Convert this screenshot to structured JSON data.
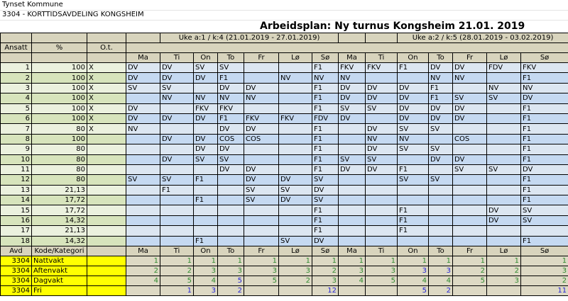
{
  "header": {
    "organization": "Tynset Kommune",
    "department": "3304 - KORTTIDSAVDELING KONGSHEIM",
    "title": "Arbeidsplan: Ny turnus Kongsheim 21.01. 2019"
  },
  "weeks": [
    "Uke a:1 / k:4 (21.01.2019 - 27.01.2019)",
    "Uke a:2 / k:5 (28.01.2019 - 03.02.2019)"
  ],
  "columns": {
    "ansatt": "Ansatt",
    "percent": "%",
    "ot": "O.t."
  },
  "days": [
    "Ma",
    "Ti",
    "On",
    "To",
    "Fr",
    "Lø",
    "Sø",
    "Ma",
    "Ti",
    "On",
    "To",
    "Fr",
    "Lø",
    "Sø"
  ],
  "employees": [
    {
      "id": "1",
      "pct": "100",
      "ot": "X",
      "shifts": [
        "DV",
        "DV",
        "SV",
        "SV",
        "",
        "",
        "F1",
        "FKV",
        "FKV",
        "F1",
        "DV",
        "DV",
        "FDV",
        "FKV"
      ]
    },
    {
      "id": "2",
      "pct": "100",
      "ot": "X",
      "shifts": [
        "DV",
        "DV",
        "DV",
        "F1",
        "",
        "NV",
        "NV",
        "NV",
        "",
        "",
        "NV",
        "NV",
        "",
        "F1"
      ]
    },
    {
      "id": "3",
      "pct": "100",
      "ot": "X",
      "shifts": [
        "SV",
        "SV",
        "",
        "DV",
        "DV",
        "",
        "F1",
        "DV",
        "DV",
        "DV",
        "F1",
        "",
        "NV",
        "NV"
      ]
    },
    {
      "id": "4",
      "pct": "100",
      "ot": "X",
      "shifts": [
        "",
        "NV",
        "NV",
        "NV",
        "NV",
        "",
        "F1",
        "DV",
        "DV",
        "DV",
        "F1",
        "SV",
        "SV",
        "DV"
      ]
    },
    {
      "id": "5",
      "pct": "100",
      "ot": "X",
      "shifts": [
        "DV",
        "",
        "FKV",
        "FKV",
        "",
        "",
        "F1",
        "SV",
        "SV",
        "DV",
        "DV",
        "DV",
        "",
        "F1"
      ]
    },
    {
      "id": "6",
      "pct": "100",
      "ot": "X",
      "shifts": [
        "DV",
        "DV",
        "DV",
        "F1",
        "FKV",
        "FKV",
        "FDV",
        "DV",
        "",
        "DV",
        "DV",
        "DV",
        "",
        "F1"
      ]
    },
    {
      "id": "7",
      "pct": "80",
      "ot": "X",
      "shifts": [
        "NV",
        "",
        "",
        "DV",
        "DV",
        "",
        "F1",
        "",
        "DV",
        "SV",
        "SV",
        "",
        "",
        "F1"
      ]
    },
    {
      "id": "8",
      "pct": "100",
      "ot": "",
      "shifts": [
        "",
        "DV",
        "DV",
        "COS",
        "COS",
        "",
        "F1",
        "",
        "NV",
        "NV",
        "",
        "COS",
        "",
        "F1"
      ]
    },
    {
      "id": "9",
      "pct": "80",
      "ot": "",
      "shifts": [
        "",
        "",
        "DV",
        "DV",
        "",
        "",
        "F1",
        "",
        "DV",
        "SV",
        "SV",
        "",
        "",
        "F1"
      ]
    },
    {
      "id": "10",
      "pct": "80",
      "ot": "",
      "shifts": [
        "",
        "DV",
        "SV",
        "SV",
        "",
        "",
        "F1",
        "SV",
        "SV",
        "",
        "DV",
        "DV",
        "",
        "F1"
      ]
    },
    {
      "id": "11",
      "pct": "80",
      "ot": "",
      "shifts": [
        "",
        "",
        "",
        "DV",
        "DV",
        "",
        "F1",
        "DV",
        "DV",
        "F1",
        "",
        "SV",
        "SV",
        "DV"
      ]
    },
    {
      "id": "12",
      "pct": "80",
      "ot": "",
      "shifts": [
        "SV",
        "SV",
        "F1",
        "",
        "DV",
        "DV",
        "SV",
        "",
        "",
        "SV",
        "SV",
        "",
        "",
        "F1"
      ]
    },
    {
      "id": "13",
      "pct": "21,13",
      "ot": "",
      "shifts": [
        "",
        "F1",
        "",
        "",
        "SV",
        "SV",
        "DV",
        "",
        "",
        "",
        "",
        "",
        "",
        "F1"
      ]
    },
    {
      "id": "14",
      "pct": "17,72",
      "ot": "",
      "shifts": [
        "",
        "",
        "F1",
        "",
        "SV",
        "DV",
        "SV",
        "",
        "",
        "",
        "",
        "",
        "",
        "F1"
      ]
    },
    {
      "id": "15",
      "pct": "17,72",
      "ot": "",
      "shifts": [
        "",
        "",
        "",
        "",
        "",
        "",
        "F1",
        "",
        "",
        "F1",
        "",
        "",
        "DV",
        "SV"
      ]
    },
    {
      "id": "16",
      "pct": "14,32",
      "ot": "",
      "shifts": [
        "",
        "",
        "",
        "",
        "",
        "",
        "F1",
        "",
        "",
        "F1",
        "",
        "",
        "DV",
        "SV"
      ]
    },
    {
      "id": "17",
      "pct": "21,13",
      "ot": "",
      "shifts": [
        "",
        "",
        "",
        "",
        "",
        "",
        "F1",
        "",
        "",
        "F1",
        "",
        "",
        "",
        ""
      ]
    },
    {
      "id": "18",
      "pct": "14,32",
      "ot": "",
      "shifts": [
        "",
        "",
        "F1",
        "",
        "",
        "SV",
        "DV",
        "",
        "",
        "",
        "",
        "",
        "",
        "F1"
      ]
    }
  ],
  "summary": {
    "headers": {
      "avd": "Avd",
      "category": "Kode/Kategori"
    },
    "colors": {
      "green": "#2f8a2f",
      "blue": "#2323d6"
    },
    "rows": [
      {
        "avd": "3304",
        "category": "Nattvakt",
        "counts": [
          "1",
          "1",
          "1",
          "1",
          "1",
          "1",
          "1",
          "1",
          "1",
          "1",
          "1",
          "1",
          "1",
          "1"
        ],
        "blue": []
      },
      {
        "avd": "3304",
        "category": "Aftenvakt",
        "counts": [
          "2",
          "2",
          "3",
          "3",
          "3",
          "3",
          "2",
          "3",
          "3",
          "3",
          "3",
          "2",
          "2",
          "3"
        ],
        "blue": [
          9,
          10
        ]
      },
      {
        "avd": "3304",
        "category": "Dagvakt",
        "counts": [
          "4",
          "5",
          "4",
          "5",
          "5",
          "2",
          "3",
          "4",
          "5",
          "4",
          "4",
          "5",
          "3",
          "2"
        ],
        "blue": [
          3
        ]
      },
      {
        "avd": "3304",
        "category": "Fri",
        "counts": [
          "",
          "1",
          "3",
          "2",
          "",
          "",
          "12",
          "",
          "",
          "5",
          "2",
          "",
          "",
          "11"
        ],
        "blue": [
          0,
          1,
          2,
          3,
          4,
          5,
          6,
          7,
          8,
          9,
          10,
          11,
          12,
          13
        ]
      }
    ]
  },
  "colors": {
    "header_bg": "#d8d4bd",
    "employee_green": "#d7e4bc",
    "shift_blue": "#c5d9f1",
    "category_yellow": "#ffff00"
  }
}
